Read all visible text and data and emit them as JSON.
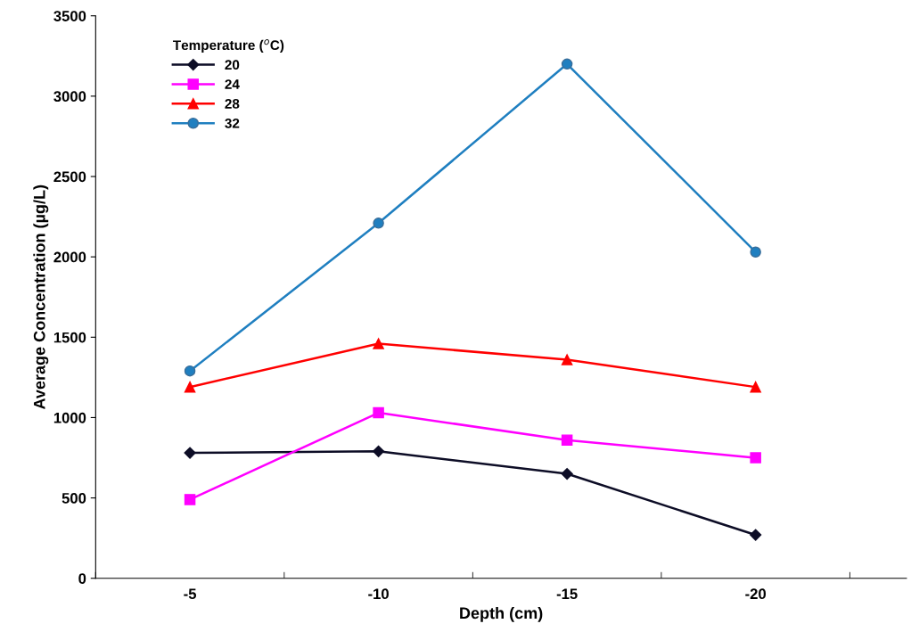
{
  "chart_data": {
    "type": "line",
    "xlabel": "Depth (cm)",
    "ylabel": "Average Concentration (µg/L)",
    "legend_title": "Temperature ($^{o}$C)",
    "categories": [
      "-5",
      "-10",
      "-15",
      "-20"
    ],
    "series": [
      {
        "name": "20",
        "color": "#0d0d26",
        "marker": "diamond",
        "values": [
          780,
          790,
          650,
          270
        ]
      },
      {
        "name": "24",
        "color": "#ff00ff",
        "marker": "square",
        "values": [
          490,
          1030,
          860,
          750
        ]
      },
      {
        "name": "28",
        "color": "#ff0000",
        "marker": "triangle",
        "values": [
          1190,
          1460,
          1360,
          1190
        ]
      },
      {
        "name": "32",
        "color": "#1f7fc0",
        "marker": "circle",
        "values": [
          1290,
          2210,
          3200,
          2030
        ]
      }
    ],
    "ylim": [
      0,
      3500
    ],
    "yticks": [
      0,
      500,
      1000,
      1500,
      2000,
      2500,
      3000,
      3500
    ],
    "grid": false,
    "legend": "top left"
  }
}
